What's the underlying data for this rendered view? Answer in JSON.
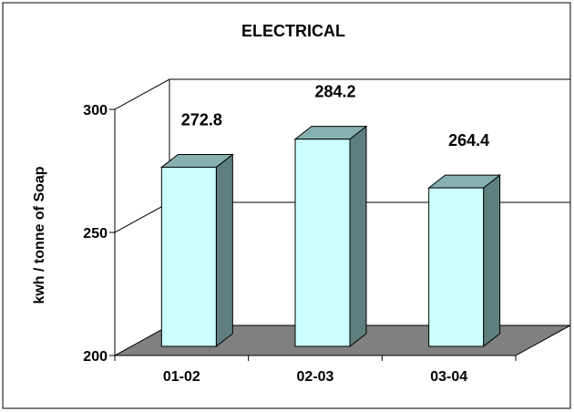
{
  "chart_data": {
    "type": "bar",
    "title": "ELECTRICAL",
    "xlabel": "",
    "ylabel": "kwh / tonne of Soap",
    "categories": [
      "01-02",
      "02-03",
      "03-04"
    ],
    "values": [
      272.8,
      284.2,
      264.4
    ],
    "data_labels": [
      "272.8",
      "284.2",
      "264.4"
    ],
    "ylim": [
      200,
      300
    ],
    "yticks": [
      200,
      250,
      300
    ],
    "ytick_labels": [
      "200",
      "250",
      "300"
    ],
    "grid": true,
    "legend": "none",
    "three_d": true
  },
  "colors": {
    "bar_front": "#ccffff",
    "bar_side": "#5f7f7f",
    "bar_top": "#87b0b0",
    "floor": "#808080",
    "outline": "#000000",
    "frame": "#000000"
  }
}
